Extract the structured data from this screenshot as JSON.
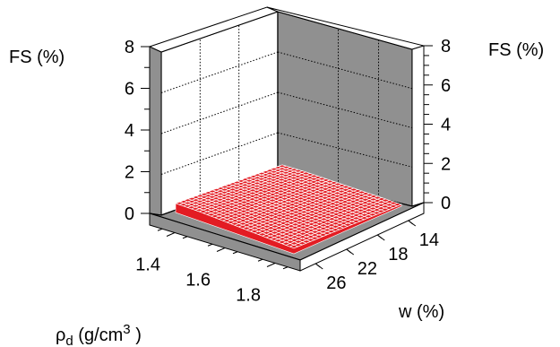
{
  "chart_data": {
    "type": "surface3d",
    "z_axis": {
      "label_left": "FS (%)",
      "label_right": "FS (%)",
      "ticks_left": [
        "0",
        "2",
        "4",
        "6",
        "8"
      ],
      "ticks_right": [
        "0",
        "2",
        "4",
        "6",
        "8"
      ],
      "range": [
        0,
        8
      ]
    },
    "x_axis": {
      "label_symbol": "ρ",
      "label_sub": "d",
      "label_unit": " (g/cm",
      "label_sup": "3",
      "label_close": " )",
      "ticks": [
        "1.4",
        "1.6",
        "1.8"
      ],
      "range": [
        1.3,
        1.9
      ]
    },
    "y_axis": {
      "label": "w (%)",
      "ticks": [
        "14",
        "18",
        "22",
        "26"
      ],
      "range": [
        12,
        28
      ]
    },
    "surface": {
      "description_value": "near-zero free swell across grid",
      "z_values": [
        [
          0.5,
          0.5,
          0.45,
          0.4,
          0.35,
          0.3
        ],
        [
          0.45,
          0.45,
          0.4,
          0.35,
          0.3,
          0.25
        ],
        [
          0.4,
          0.4,
          0.35,
          0.3,
          0.25,
          0.2
        ],
        [
          0.35,
          0.35,
          0.3,
          0.25,
          0.2,
          0.15
        ],
        [
          0.3,
          0.3,
          0.25,
          0.2,
          0.15,
          0.1
        ]
      ]
    },
    "colors": {
      "surface": "#e31c23",
      "mesh": "#ffffff",
      "wall": "#909090",
      "floor": "#909090",
      "back_wall": "#ffffff"
    },
    "grid": true
  }
}
